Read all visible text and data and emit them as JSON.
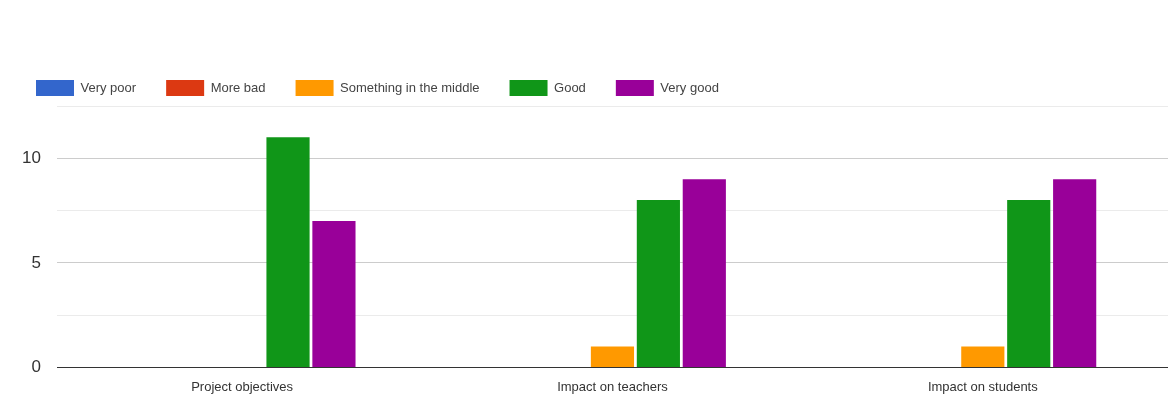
{
  "chart_data": {
    "type": "bar",
    "categories": [
      "Project objectives",
      "Impact on teachers",
      "Impact on students"
    ],
    "series": [
      {
        "name": "Very poor",
        "color": "#3366cc",
        "values": [
          0,
          0,
          0
        ]
      },
      {
        "name": "More bad",
        "color": "#dc3912",
        "values": [
          0,
          0,
          0
        ]
      },
      {
        "name": "Something in the middle",
        "color": "#ff9900",
        "values": [
          0,
          1,
          1
        ]
      },
      {
        "name": "Good",
        "color": "#109618",
        "values": [
          11,
          8,
          8
        ]
      },
      {
        "name": "Very good",
        "color": "#990099",
        "values": [
          7,
          9,
          9
        ]
      }
    ],
    "ylim": [
      0,
      12.5
    ],
    "yticks": [
      0,
      {
        "value": 2.5,
        "label": null
      },
      5,
      {
        "value": 7.5,
        "label": null
      },
      10,
      {
        "value": 12.5,
        "label": null
      }
    ],
    "grid": "y",
    "legend": "top left"
  }
}
